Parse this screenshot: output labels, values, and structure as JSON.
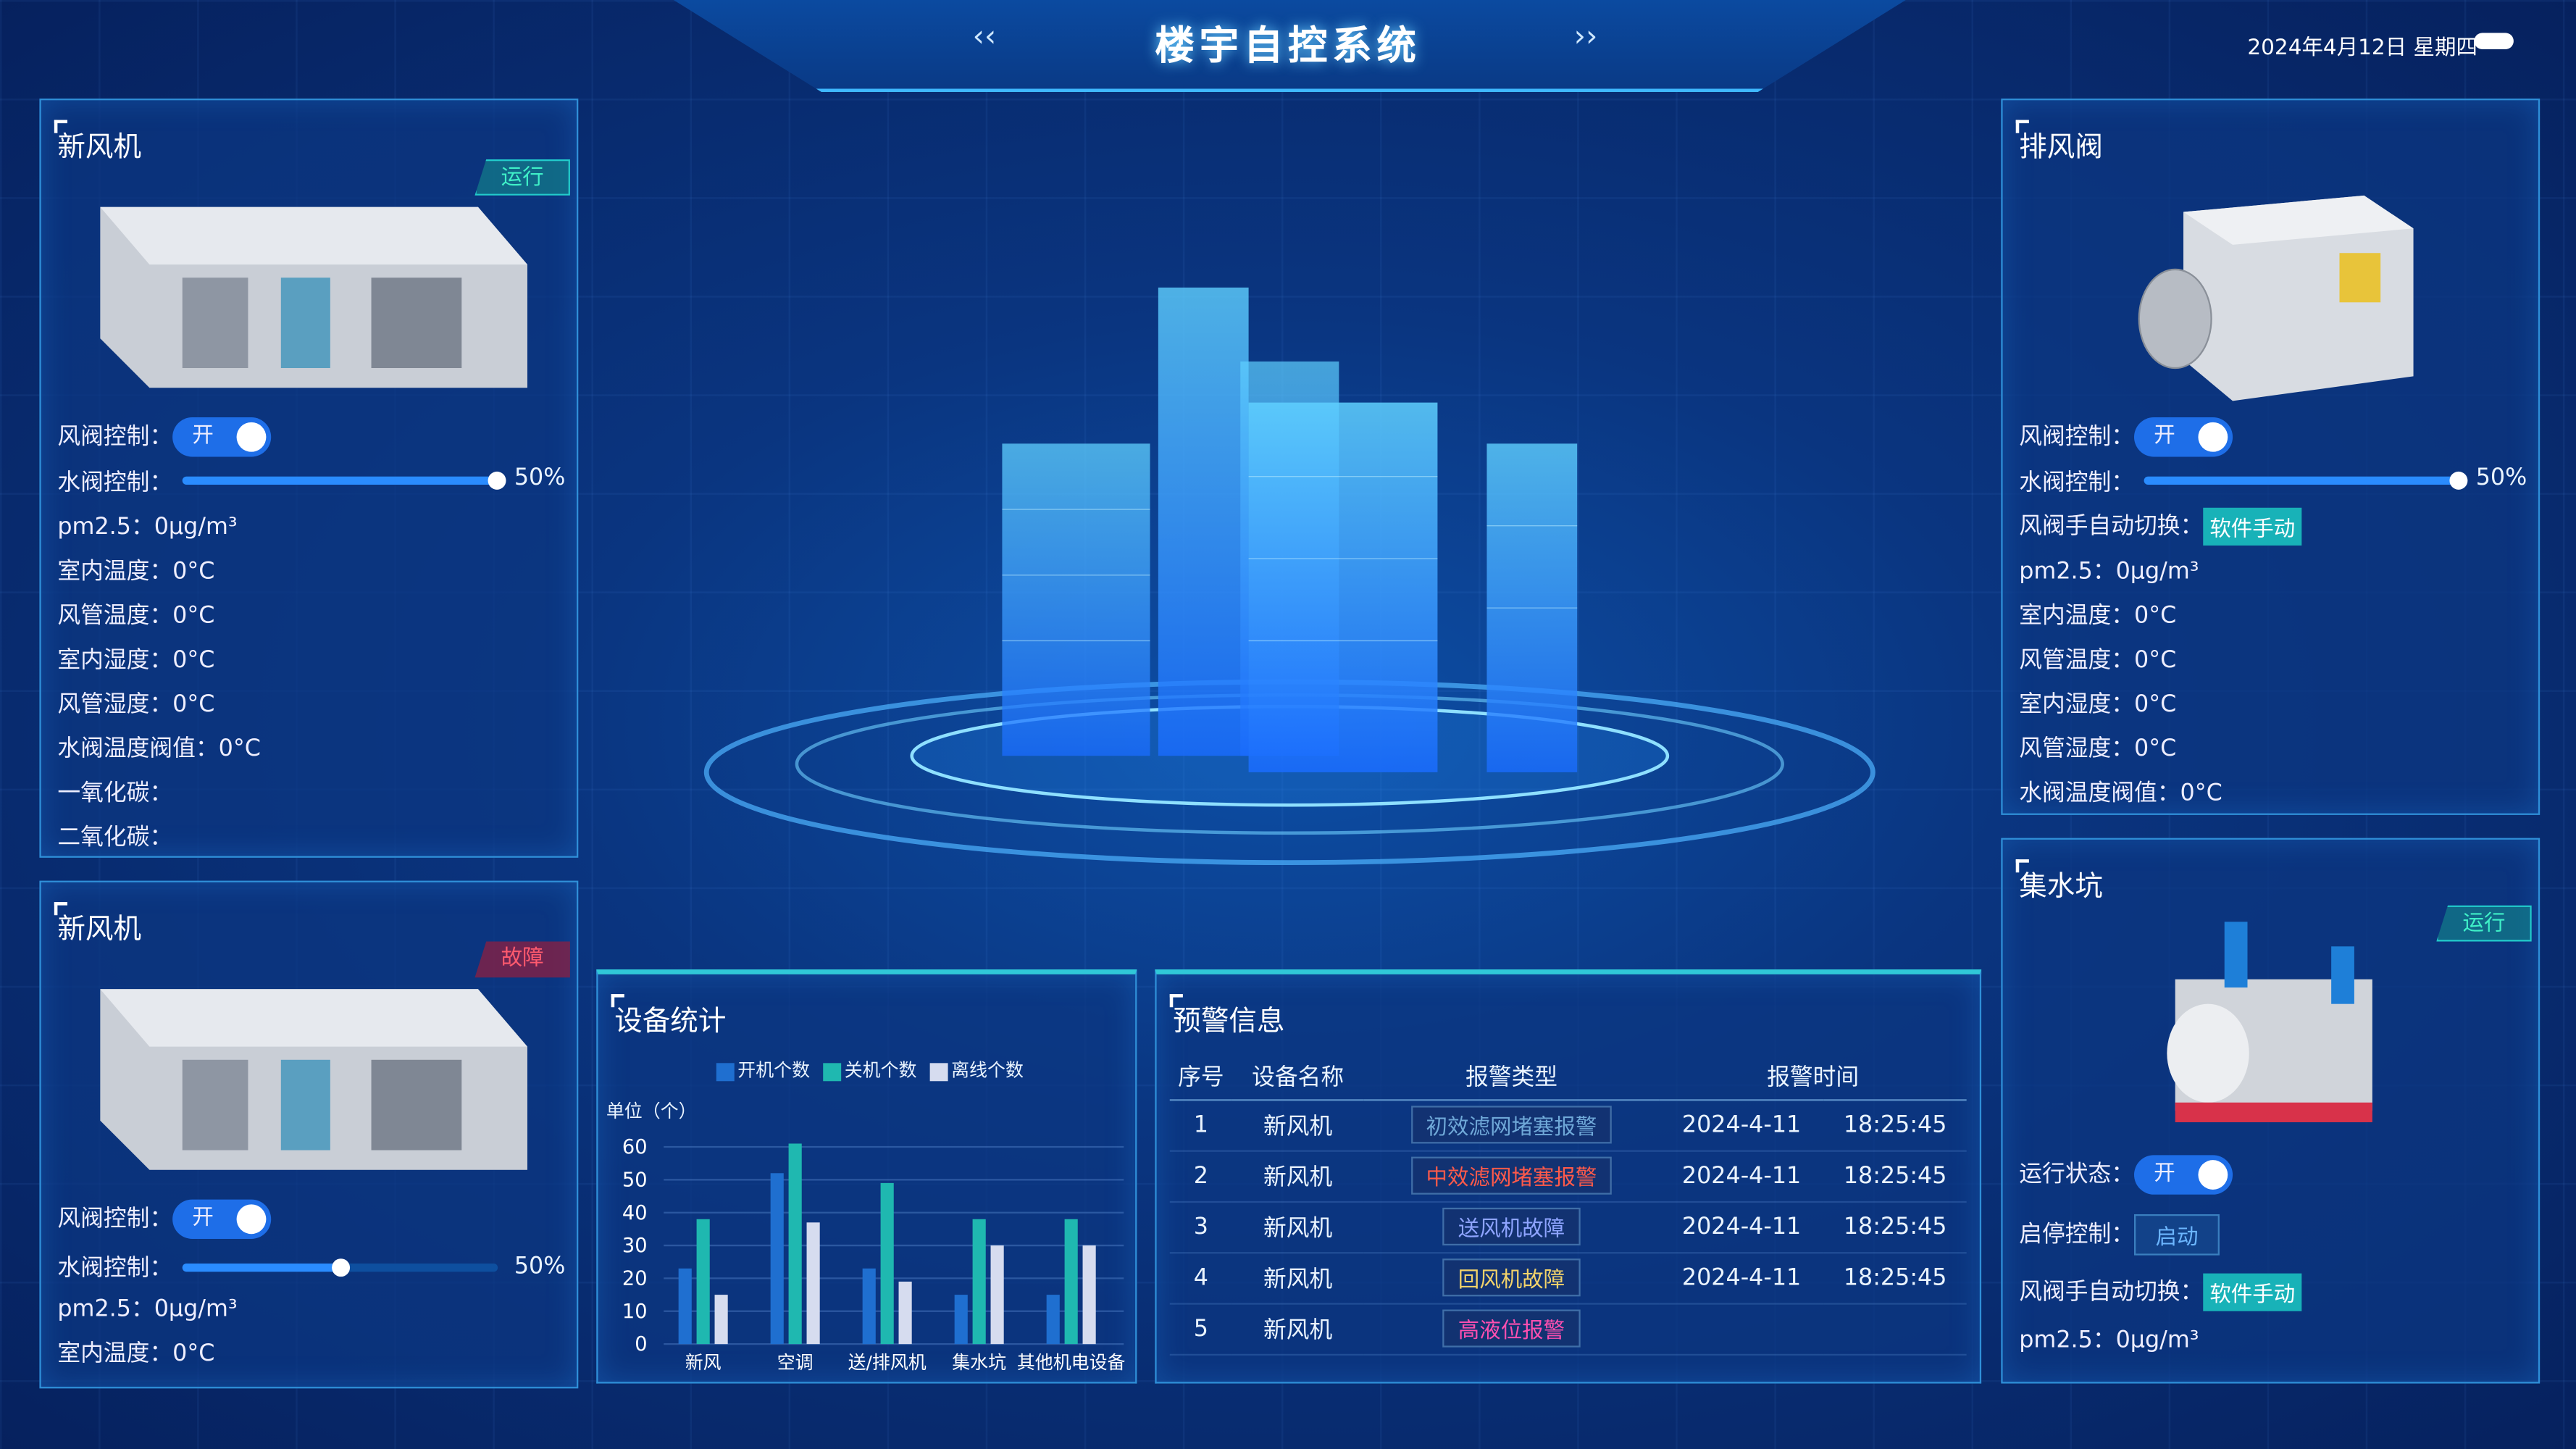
{
  "header": {
    "title": "楼宇自控系统",
    "prev": "‹‹",
    "next": "››",
    "date": "2024年4月12日  星期四",
    "weather_icon": "cloud-icon"
  },
  "left_top": {
    "title": "新风机",
    "status": "运行",
    "damper_label": "风阀控制：",
    "damper_state": "开",
    "valve_label": "水阀控制：",
    "valve_percent": "50%",
    "valve_value": 50,
    "rows": [
      "pm2.5：0μg/m³",
      "室内温度：0°C",
      "风管温度：0°C",
      "室内湿度：0°C",
      "风管湿度：0°C",
      "水阀温度阀值：0°C",
      "一氧化碳：",
      "二氧化碳："
    ]
  },
  "left_bottom": {
    "title": "新风机",
    "status": "故障",
    "damper_label": "风阀控制：",
    "damper_state": "开",
    "valve_label": "水阀控制：",
    "valve_percent": "50%",
    "valve_value": 50,
    "rows": [
      "pm2.5：0μg/m³",
      "室内温度：0°C"
    ]
  },
  "right_top": {
    "title": "排风阀",
    "damper_label": "风阀控制：",
    "damper_state": "开",
    "valve_label": "水阀控制：",
    "valve_percent": "50%",
    "valve_value": 50,
    "mode_label": "风阀手自动切换：",
    "mode_value": "软件手动",
    "rows": [
      "pm2.5：0μg/m³",
      "室内温度：0°C",
      "风管温度：0°C",
      "室内湿度：0°C",
      "风管湿度：0°C",
      "水阀温度阀值：0°C"
    ]
  },
  "right_bottom": {
    "title": "集水坑",
    "status": "运行",
    "run_label": "运行状态：",
    "run_state": "开",
    "startstop_label": "启停控制：",
    "startstop_button": "启动",
    "mode_label": "风阀手自动切换：",
    "mode_value": "软件手动",
    "rows": [
      "pm2.5：0μg/m³"
    ]
  },
  "stats": {
    "title": "设备统计"
  },
  "chart_data": {
    "type": "bar",
    "unit_label": "单位（个）",
    "categories": [
      "新风",
      "空调",
      "送/排风机",
      "集水坑",
      "其他机电设备"
    ],
    "series": [
      {
        "name": "开机个数",
        "color": "#1f6fd0",
        "values": [
          23,
          52,
          23,
          15,
          15
        ]
      },
      {
        "name": "关机个数",
        "color": "#1fb8b0",
        "values": [
          38,
          61,
          49,
          38,
          38
        ]
      },
      {
        "name": "离线个数",
        "color": "#d6dcef",
        "values": [
          15,
          37,
          19,
          30,
          30
        ]
      }
    ],
    "ylim": [
      0,
      60
    ],
    "yticks": [
      0,
      10,
      20,
      30,
      40,
      50,
      60
    ],
    "grid": true,
    "legend": "top"
  },
  "warnings": {
    "title": "预警信息",
    "headers": [
      "序号",
      "设备名称",
      "报警类型",
      "报警时间"
    ],
    "rows": [
      {
        "no": "1",
        "device": "新风机",
        "type": "初效滤网堵塞报警",
        "color": "#6fa8d8",
        "date": "2024-4-11",
        "time": "18:25:45"
      },
      {
        "no": "2",
        "device": "新风机",
        "type": "中效滤网堵塞报警",
        "color": "#ff5a4a",
        "date": "2024-4-11",
        "time": "18:25:45"
      },
      {
        "no": "3",
        "device": "新风机",
        "type": "送风机故障",
        "color": "#8ea4ff",
        "date": "2024-4-11",
        "time": "18:25:45"
      },
      {
        "no": "4",
        "device": "新风机",
        "type": "回风机故障",
        "color": "#f3d36a",
        "date": "2024-4-11",
        "time": "18:25:45"
      },
      {
        "no": "5",
        "device": "新风机",
        "type": "高液位报警",
        "color": "#ff4fb0",
        "date": "",
        "time": ""
      }
    ]
  }
}
